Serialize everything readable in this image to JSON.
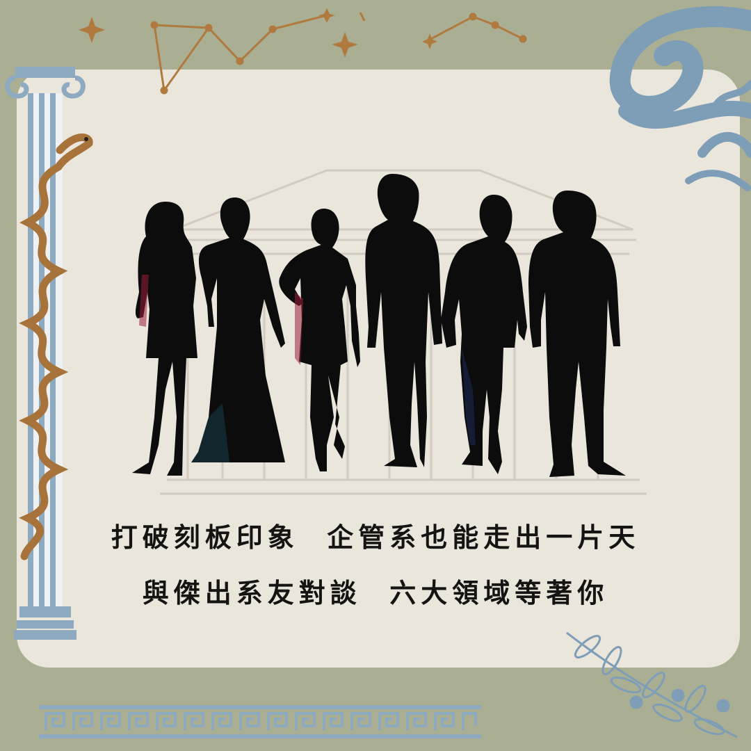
{
  "caption": {
    "line1": "打破刻板印象  企管系也能走出一片天",
    "line2": "與傑出系友對談  六大領域等著你"
  },
  "colors": {
    "background": "#aaaf93",
    "paper": "#ebe6dc",
    "column_blue": "#8eaac0",
    "snake_brown": "#a8733a",
    "constellation": "#b07a3e",
    "text": "#151412",
    "silhouette": "#0c0c0c"
  },
  "decorations": {
    "column": "ionic-column-with-snake",
    "constellation": "star-constellation",
    "wave": "blue-swirl-wave",
    "olive": "olive-branch",
    "border": "greek-key-meander",
    "background": "greek-temple-sketch"
  },
  "figures": [
    "woman-short-dress",
    "woman-evening-gown",
    "woman-mini-dress",
    "man-suit-tall",
    "man-blazer",
    "man-suit-broad"
  ]
}
